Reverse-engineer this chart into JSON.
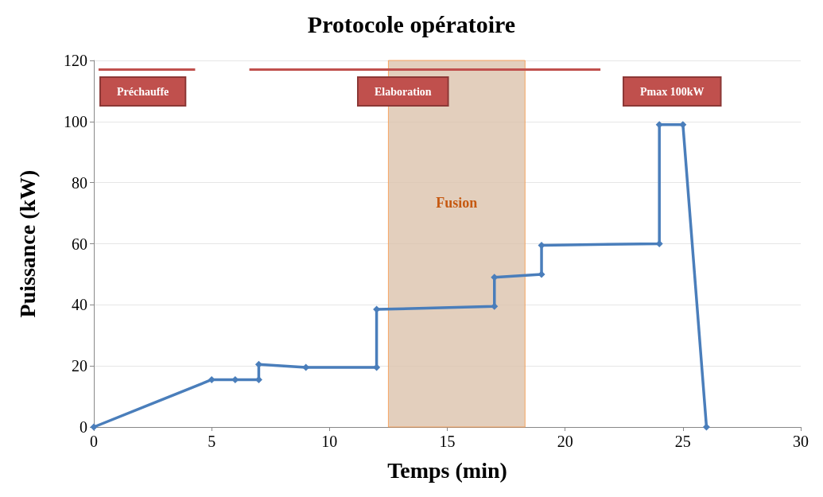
{
  "chart_data": {
    "type": "line",
    "title": "Protocole opératoire",
    "xlabel": "Temps (min)",
    "ylabel": "Puissance (kW)",
    "xlim": [
      0,
      30
    ],
    "xticks": [
      0,
      5,
      10,
      15,
      20,
      25,
      30
    ],
    "ylim": [
      0,
      120
    ],
    "yticks": [
      0,
      20,
      40,
      60,
      80,
      100,
      120
    ],
    "grid": "y",
    "marker": "diamond",
    "series": [
      {
        "color": "#4a7ebb",
        "x": [
          0,
          5,
          6,
          7,
          7,
          9,
          12,
          12,
          17,
          17,
          19,
          19,
          24,
          24,
          25,
          26
        ],
        "values": [
          0,
          15.5,
          15.5,
          15.5,
          20.5,
          19.5,
          19.5,
          38.5,
          39.5,
          49,
          50,
          59.5,
          60,
          99,
          99,
          0
        ]
      },
      {
        "color": "#c0504d",
        "marker": "none",
        "x": [
          0.2,
          4.3
        ],
        "values": [
          117,
          117
        ]
      },
      {
        "color": "#c0504d",
        "marker": "none",
        "x": [
          6.6,
          21.5
        ],
        "values": [
          117,
          117
        ]
      }
    ],
    "bands": [
      {
        "axis": "x",
        "from": 12.5,
        "to": 18.3,
        "label": "Fusion",
        "color": "#dcc3ac"
      }
    ],
    "annotations": [
      "Préchauffe",
      "Elaboration",
      "Pmax 100kW"
    ]
  }
}
